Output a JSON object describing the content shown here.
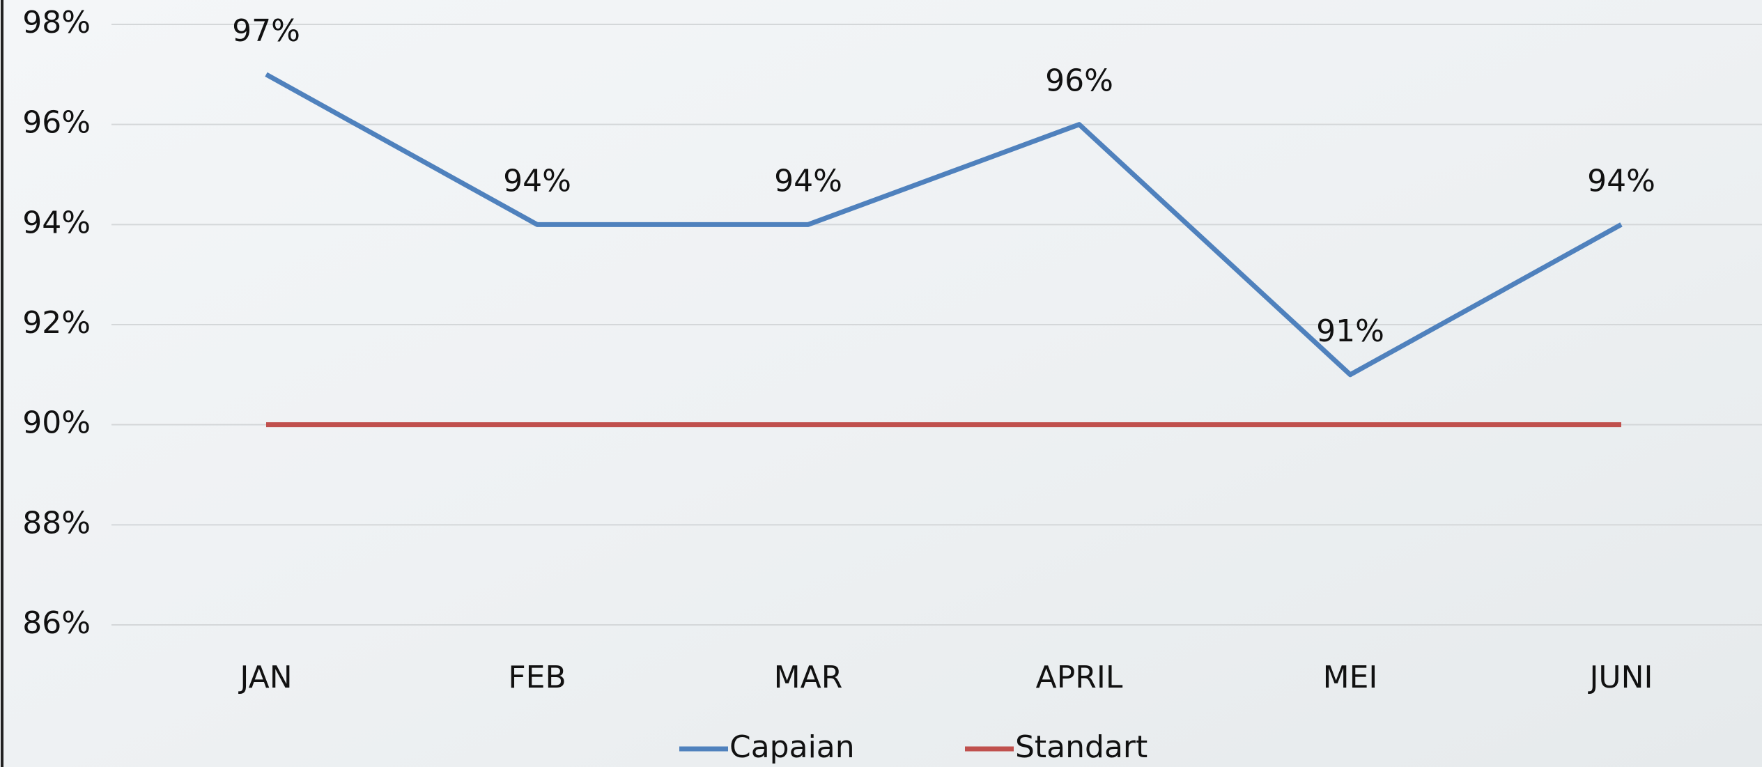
{
  "chart_data": {
    "type": "line",
    "categories": [
      "JAN",
      "FEB",
      "MAR",
      "APRIL",
      "MEI",
      "JUNI"
    ],
    "series": [
      {
        "name": "Capaian",
        "color": "#4f81bd",
        "values": [
          97,
          94,
          94,
          96,
          91,
          94
        ],
        "value_labels": [
          "97%",
          "94%",
          "94%",
          "96%",
          "91%",
          "94%"
        ]
      },
      {
        "name": "Standart",
        "color": "#c0504d",
        "values": [
          90,
          90,
          90,
          90,
          90,
          90
        ]
      }
    ],
    "ylim": [
      86,
      98
    ],
    "yticks": [
      {
        "value": 86,
        "label": "86%"
      },
      {
        "value": 88,
        "label": "88%"
      },
      {
        "value": 90,
        "label": "90%"
      },
      {
        "value": 92,
        "label": "92%"
      },
      {
        "value": 94,
        "label": "94%"
      },
      {
        "value": 96,
        "label": "96%"
      },
      {
        "value": 98,
        "label": "98%"
      }
    ],
    "grid": true,
    "legend": "bottom"
  }
}
